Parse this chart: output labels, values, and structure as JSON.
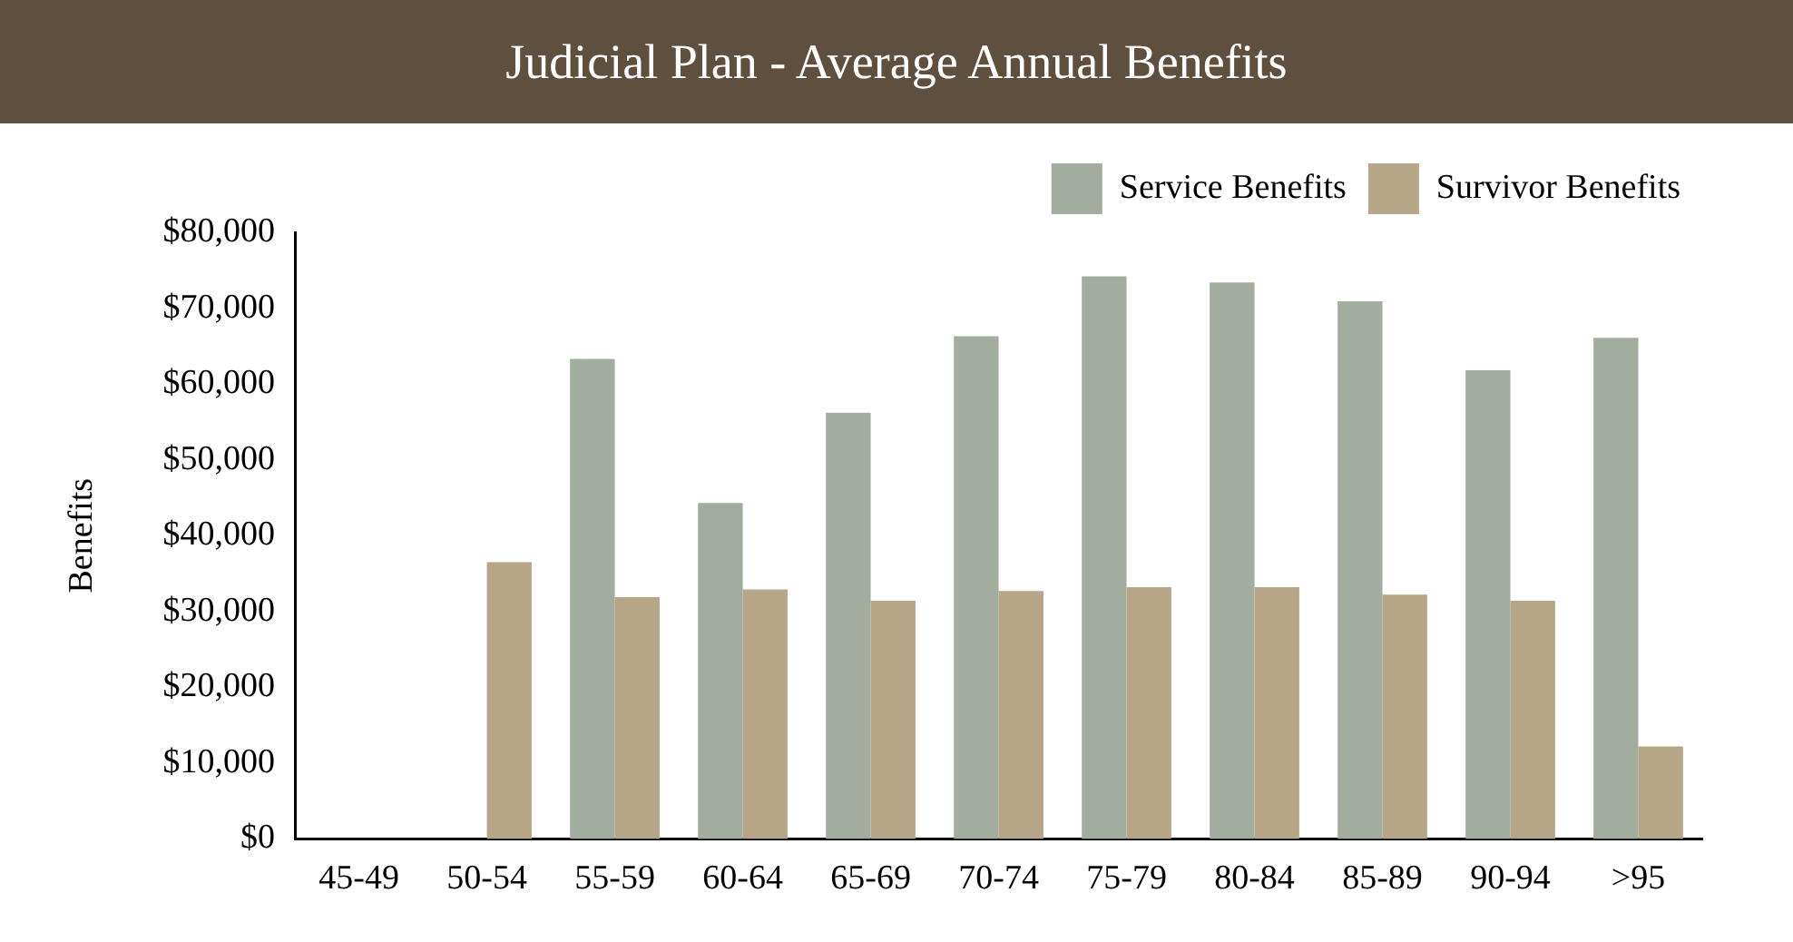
{
  "chart_data": {
    "type": "bar",
    "title": "Judicial Plan - Average Annual Benefits",
    "ylabel": "Benefits",
    "categories": [
      "45-49",
      "50-54",
      "55-59",
      "60-64",
      "65-69",
      "70-74",
      "75-79",
      "80-84",
      "85-89",
      "90-94",
      ">95"
    ],
    "series": [
      {
        "name": "Service Benefits",
        "color": "#a2ac9f",
        "values": [
          null,
          null,
          63300,
          44300,
          56200,
          66300,
          74200,
          73400,
          70900,
          61800,
          66100
        ]
      },
      {
        "name": "Survivor Benefits",
        "color": "#b6a586",
        "values": [
          null,
          36500,
          31900,
          32900,
          31400,
          32700,
          33200,
          33200,
          32200,
          31400,
          12200
        ]
      }
    ],
    "ylim": [
      0,
      80000
    ],
    "yticks": [
      {
        "value": 0,
        "label": "$0"
      },
      {
        "value": 10000,
        "label": "$10,000"
      },
      {
        "value": 20000,
        "label": "$20,000"
      },
      {
        "value": 30000,
        "label": "$30,000"
      },
      {
        "value": 40000,
        "label": "$40,000"
      },
      {
        "value": 50000,
        "label": "$50,000"
      },
      {
        "value": 60000,
        "label": "$60,000"
      },
      {
        "value": 70000,
        "label": "$70,000"
      },
      {
        "value": 80000,
        "label": "$80,000"
      }
    ],
    "grid": false,
    "legend": "top right"
  }
}
